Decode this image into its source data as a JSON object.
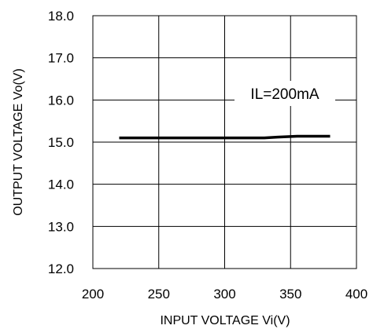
{
  "chart_data": {
    "type": "line",
    "title": "",
    "xlabel": "INPUT VOLTAGE Vi(V)",
    "ylabel": "OUTPUT VOLTAGE Vo(V)",
    "xlim": [
      200,
      400
    ],
    "ylim": [
      12.0,
      18.0
    ],
    "x_ticks": [
      "200",
      "250",
      "300",
      "350",
      "400"
    ],
    "y_ticks": [
      "12.0",
      "13.0",
      "14.0",
      "15.0",
      "16.0",
      "17.0",
      "18.0"
    ],
    "grid": true,
    "annotation": "IL=200mA",
    "series": [
      {
        "x": [
          220,
          250,
          300,
          330,
          340,
          355,
          380
        ],
        "y": [
          15.1,
          15.1,
          15.1,
          15.1,
          15.12,
          15.14,
          15.14
        ],
        "color": "#000000"
      }
    ]
  }
}
